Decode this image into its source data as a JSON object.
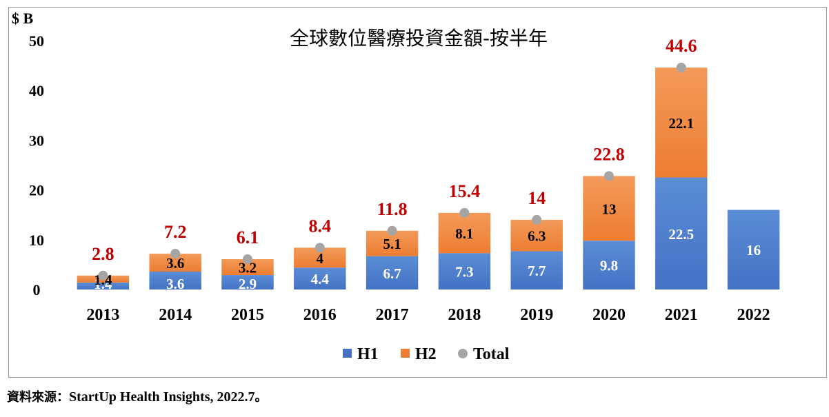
{
  "chart_data": {
    "type": "bar",
    "stacked": true,
    "title": "全球數位醫療投資金額-按半年",
    "ylabel": "$ B",
    "ylim": [
      0,
      50
    ],
    "yticks": [
      "0",
      "10",
      "20",
      "30",
      "40",
      "50"
    ],
    "categories": [
      "2013",
      "2014",
      "2015",
      "2016",
      "2017",
      "2018",
      "2019",
      "2020",
      "2021",
      "2022"
    ],
    "series": [
      {
        "name": "H1",
        "values": [
          1.4,
          3.6,
          2.9,
          4.4,
          6.7,
          7.3,
          7.7,
          9.8,
          22.5,
          16
        ],
        "labels": [
          "1.4",
          "3.6",
          "2.9",
          "4.4",
          "6.7",
          "7.3",
          "7.7",
          "9.8",
          "22.5",
          "16"
        ],
        "color": "#4472C4"
      },
      {
        "name": "H2",
        "values": [
          1.4,
          3.6,
          3.2,
          4,
          5.1,
          8.1,
          6.3,
          13,
          22.1,
          null
        ],
        "labels": [
          "1.4",
          "3.6",
          "3.2",
          "4",
          "5.1",
          "8.1",
          "6.3",
          "13",
          "22.1",
          ""
        ],
        "color": "#ED7D31"
      },
      {
        "name": "Total",
        "values": [
          2.8,
          7.2,
          6.1,
          8.4,
          11.8,
          15.4,
          14,
          22.8,
          44.6,
          null
        ],
        "labels": [
          "2.8",
          "7.2",
          "6.1",
          "8.4",
          "11.8",
          "15.4",
          "14",
          "22.8",
          "44.6",
          ""
        ],
        "color": "#A5A5A5",
        "label_color": "#C00000"
      }
    ],
    "grid": false,
    "legend": "bottom"
  },
  "source": {
    "prefix": "資料來源：",
    "text": "StartUp Health Insights, 2022.7",
    "suffix": "。"
  }
}
